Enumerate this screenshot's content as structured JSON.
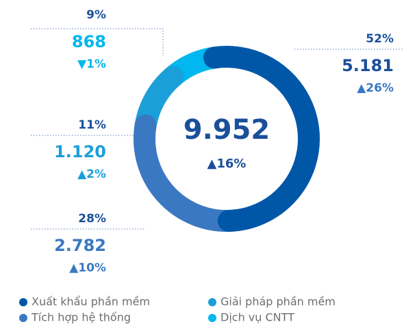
{
  "chart_data": {
    "type": "pie",
    "categories": [
      "Xuất khẩu phần mềm",
      "Tích hợp hệ thống",
      "Giải pháp phần mềm",
      "Dịch vụ  CNTT"
    ],
    "values": [
      52,
      28,
      11,
      9
    ],
    "value_labels": [
      "52%",
      "28%",
      "11%",
      "9%"
    ],
    "amount_labels": [
      "5.181",
      "2.782",
      "1.120",
      "868"
    ],
    "change_labels": [
      "▲26%",
      "▲10%",
      "▲2%",
      "▼1%"
    ],
    "colors": [
      "#0057a8",
      "#3b78c2",
      "#1b9fd9",
      "#00b7ef"
    ],
    "center_label": "9.952",
    "center_change": "▲16%"
  }
}
